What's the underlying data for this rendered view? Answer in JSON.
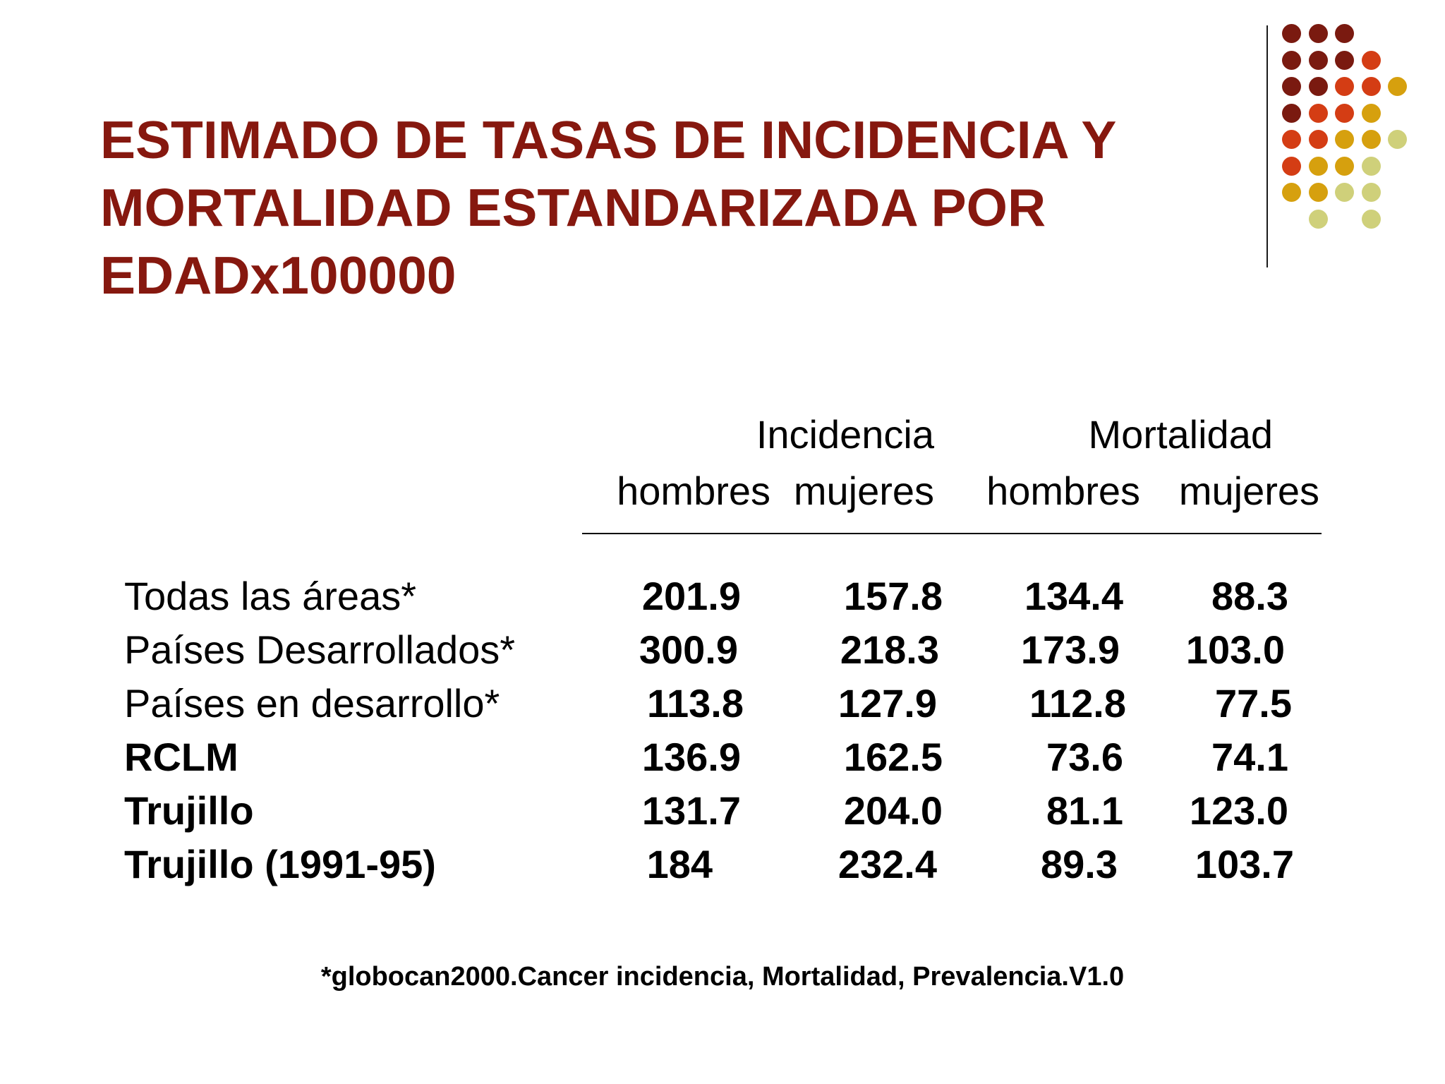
{
  "slide": {
    "title_lines": [
      "ESTIMADO DE TASAS DE INCIDENCIA Y",
      "MORTALIDAD ESTANDARIZADA POR",
      "EDADx100000"
    ],
    "colors": {
      "title": "#86180f",
      "dot_palette": [
        "#7a1a10",
        "#d43d14",
        "#d6a00e",
        "#cfd07a"
      ]
    }
  },
  "table": {
    "group_headers": [
      "Incidencia",
      "Mortalidad"
    ],
    "sub_headers": [
      "hombres",
      "mujeres",
      "hombres",
      "mujeres"
    ],
    "rows": [
      {
        "label": "Todas las áreas*",
        "values": [
          "201.9",
          "157.8",
          "134.4",
          "88.3"
        ]
      },
      {
        "label": "Países Desarrollados*",
        "values": [
          "300.9",
          "218.3",
          "173.9",
          "103.0"
        ]
      },
      {
        "label": "Países en desarrollo*",
        "values": [
          "113.8",
          "127.9",
          "112.8",
          "77.5"
        ]
      },
      {
        "label": "RCLM",
        "values": [
          "136.9",
          "162.5",
          "73.6",
          "74.1"
        ]
      },
      {
        "label": "Trujillo",
        "values": [
          "131.7",
          "204.0",
          "81.1",
          "123.0"
        ]
      },
      {
        "label": "Trujillo (1991-95)",
        "values": [
          "184",
          "232.4",
          "89.3",
          "103.7"
        ]
      }
    ]
  },
  "footnote": "*globocan2000.Cancer incidencia, Mortalidad, Prevalencia.V1.0"
}
